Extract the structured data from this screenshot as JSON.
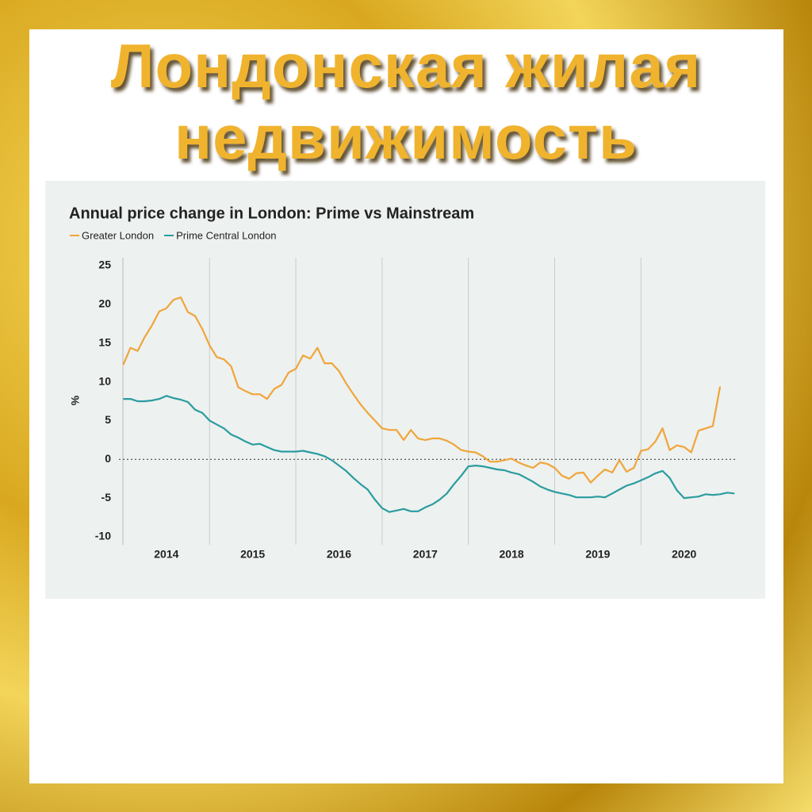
{
  "header": {
    "title_lines": [
      "Лондонская жилая",
      "недвижимость"
    ]
  },
  "chart_data": {
    "type": "line",
    "title": "Annual price change in London: Prime vs Mainstream",
    "y_label": "%",
    "legend": "top-left",
    "x": [
      2014,
      2014.083,
      2014.167,
      2014.25,
      2014.333,
      2014.417,
      2014.5,
      2014.583,
      2014.667,
      2014.75,
      2014.833,
      2014.917,
      2015,
      2015.083,
      2015.167,
      2015.25,
      2015.333,
      2015.417,
      2015.5,
      2015.583,
      2015.667,
      2015.75,
      2015.833,
      2015.917,
      2016,
      2016.083,
      2016.167,
      2016.25,
      2016.333,
      2016.417,
      2016.5,
      2016.583,
      2016.667,
      2016.75,
      2016.833,
      2016.917,
      2017,
      2017.083,
      2017.167,
      2017.25,
      2017.333,
      2017.417,
      2017.5,
      2017.583,
      2017.667,
      2017.75,
      2017.833,
      2017.917,
      2018,
      2018.083,
      2018.167,
      2018.25,
      2018.333,
      2018.417,
      2018.5,
      2018.583,
      2018.667,
      2018.75,
      2018.833,
      2018.917,
      2019,
      2019.083,
      2019.167,
      2019.25,
      2019.333,
      2019.417,
      2019.5,
      2019.583,
      2019.667,
      2019.75,
      2019.833,
      2019.917,
      2020,
      2020.083,
      2020.167,
      2020.25,
      2020.333,
      2020.417,
      2020.5,
      2020.583,
      2020.667,
      2020.75,
      2020.833,
      2020.917,
      2021,
      2021.083
    ],
    "series": [
      {
        "name": "Greater London",
        "color": "#f0a53a",
        "values": [
          12.2,
          14.4,
          14.0,
          15.8,
          17.3,
          19.1,
          19.5,
          20.6,
          20.9,
          19.0,
          18.5,
          16.8,
          14.7,
          13.2,
          12.9,
          12.0,
          9.3,
          8.8,
          8.4,
          8.4,
          7.8,
          9.1,
          9.6,
          11.2,
          11.7,
          13.4,
          13.0,
          14.4,
          12.4,
          12.4,
          11.4,
          9.8,
          8.4,
          7.1,
          6.0,
          5.0,
          4.0,
          3.8,
          3.8,
          2.5,
          3.8,
          2.7,
          2.5,
          2.7,
          2.7,
          2.4,
          1.9,
          1.2,
          1.0,
          0.9,
          0.4,
          -0.3,
          -0.3,
          -0.1,
          0.1,
          -0.4,
          -0.8,
          -1.1,
          -0.4,
          -0.6,
          -1.1,
          -2.1,
          -2.5,
          -1.8,
          -1.7,
          -3.0,
          -2.1,
          -1.3,
          -1.7,
          -0.1,
          -1.6,
          -1.1,
          1.1,
          1.3,
          2.3,
          4.0,
          1.2,
          1.8,
          1.6,
          0.9,
          3.7,
          4.0,
          4.3,
          9.4,
          null,
          null
        ]
      },
      {
        "name": "Prime Central London",
        "color": "#2a9ca0",
        "values": [
          7.8,
          7.8,
          7.5,
          7.5,
          7.6,
          7.8,
          8.2,
          7.9,
          7.7,
          7.4,
          6.4,
          6.0,
          5.0,
          4.5,
          4.0,
          3.2,
          2.8,
          2.3,
          1.9,
          2.0,
          1.6,
          1.2,
          1.0,
          1.0,
          1.0,
          1.1,
          0.9,
          0.7,
          0.4,
          -0.1,
          -0.8,
          -1.5,
          -2.4,
          -3.2,
          -3.9,
          -5.2,
          -6.3,
          -6.8,
          -6.6,
          -6.4,
          -6.7,
          -6.7,
          -6.2,
          -5.8,
          -5.2,
          -4.4,
          -3.2,
          -2.1,
          -0.9,
          -0.8,
          -0.9,
          -1.1,
          -1.3,
          -1.4,
          -1.7,
          -1.9,
          -2.4,
          -2.9,
          -3.5,
          -3.9,
          -4.2,
          -4.4,
          -4.6,
          -4.9,
          -4.9,
          -4.9,
          -4.8,
          -4.9,
          -4.4,
          -3.9,
          -3.4,
          -3.1,
          -2.7,
          -2.3,
          -1.8,
          -1.5,
          -2.4,
          -4.0,
          -5.0,
          -4.9,
          -4.8,
          -4.5,
          -4.6,
          -4.5,
          -4.3,
          -4.4
        ]
      }
    ],
    "xlim": [
      2013.95,
      2021.1
    ],
    "xticks": [
      {
        "value": 2014.5,
        "label": "2014"
      },
      {
        "value": 2015.5,
        "label": "2015"
      },
      {
        "value": 2016.5,
        "label": "2016"
      },
      {
        "value": 2017.5,
        "label": "2017"
      },
      {
        "value": 2018.5,
        "label": "2018"
      },
      {
        "value": 2019.5,
        "label": "2019"
      },
      {
        "value": 2020.5,
        "label": "2020"
      }
    ],
    "ylim": [
      -10,
      25
    ],
    "yticks": [
      -10,
      -5,
      0,
      5,
      10,
      15,
      20,
      25
    ],
    "zero_line": true
  }
}
